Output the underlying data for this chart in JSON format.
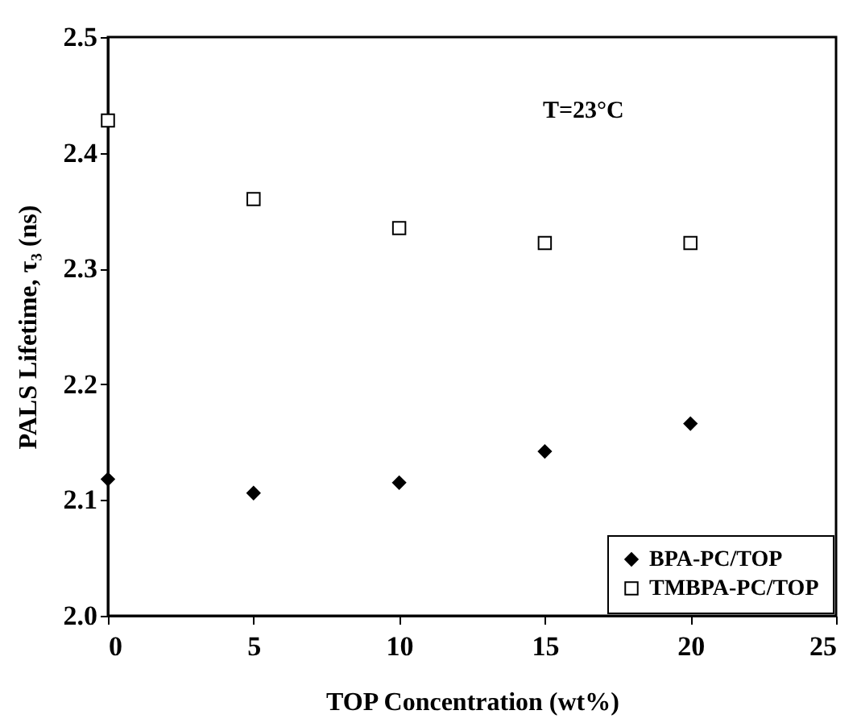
{
  "chart_data": {
    "type": "scatter",
    "xlabel": "TOP Concentration (wt%)",
    "ylabel": "PALS Lifetime, τ₃ (ns)",
    "x": [
      0,
      5,
      10,
      15,
      20
    ],
    "series": [
      {
        "name": "BPA-PC/TOP",
        "color": "#000000",
        "marker": "diamond",
        "values": [
          2.118,
          2.106,
          2.115,
          2.142,
          2.166
        ]
      },
      {
        "name": "TMBPA-PC/TOP",
        "color": "#000000",
        "marker": "square",
        "values": [
          2.428,
          2.36,
          2.335,
          2.322,
          2.322
        ]
      }
    ],
    "xlim": [
      0,
      25
    ],
    "xticks": [
      0,
      5,
      10,
      15,
      20,
      25
    ],
    "ylim": [
      2.0,
      2.5
    ],
    "yticks": [
      {
        "value": 2.0,
        "label": "2.0"
      },
      2.1,
      2.2,
      2.3,
      2.4,
      2.5
    ],
    "annotations": [
      "T=23°C"
    ],
    "legend": "bottom right",
    "grid": false
  }
}
